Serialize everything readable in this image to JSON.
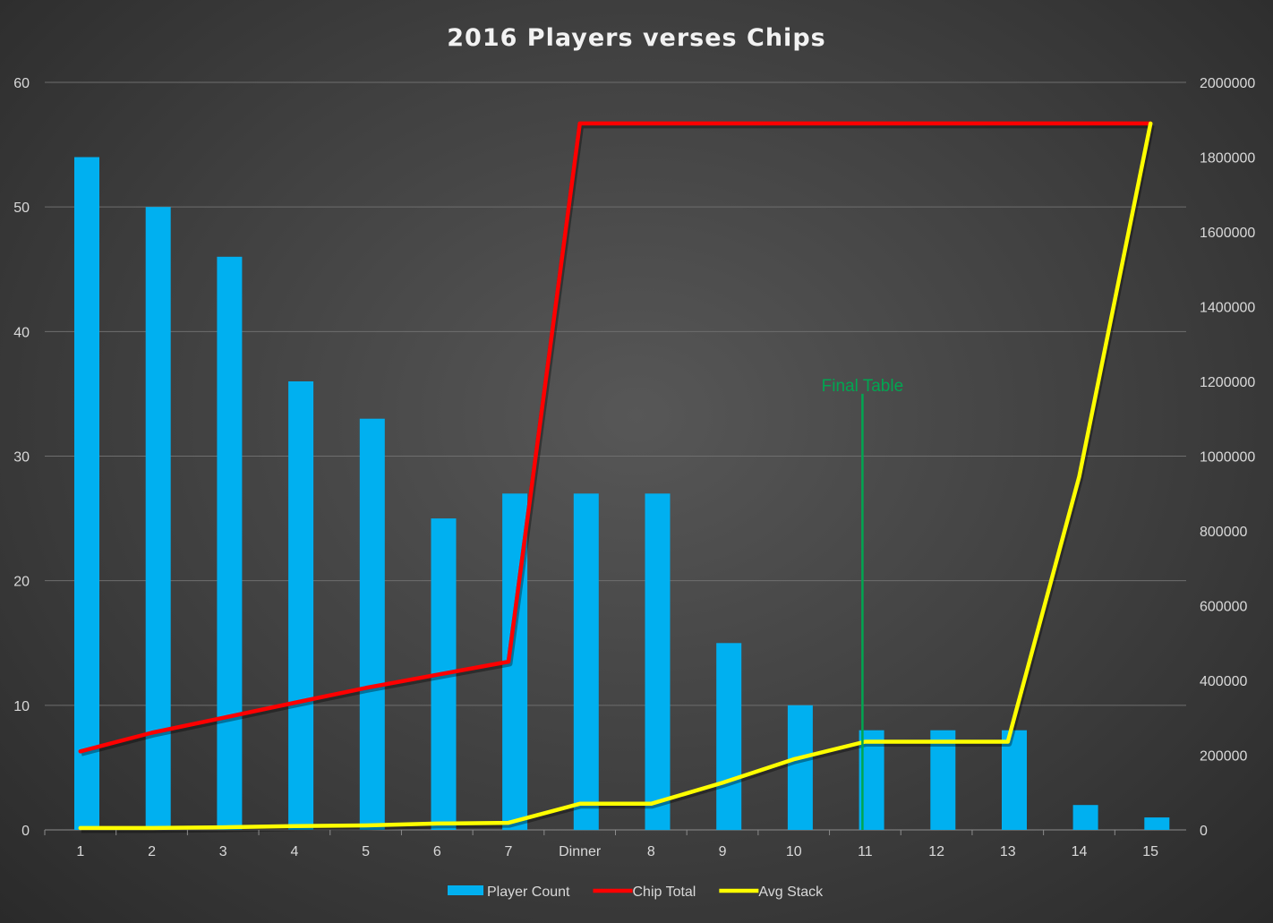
{
  "chart_data": {
    "type": "bar",
    "title": "2016 Players verses Chips",
    "categories": [
      "1",
      "2",
      "3",
      "4",
      "5",
      "6",
      "7",
      "Dinner",
      "8",
      "9",
      "10",
      "11",
      "12",
      "13",
      "14",
      "15"
    ],
    "y_left": {
      "min": 0,
      "max": 60,
      "ticks": [
        0,
        10,
        20,
        30,
        40,
        50,
        60
      ]
    },
    "y_right": {
      "min": 0,
      "max": 2000000,
      "ticks": [
        0,
        200000,
        400000,
        600000,
        800000,
        1000000,
        1200000,
        1400000,
        1600000,
        1800000,
        2000000
      ]
    },
    "grid": true,
    "legend_position": "bottom",
    "series": [
      {
        "name": "Player Count",
        "kind": "bar",
        "axis": "left",
        "color": "#00b0f0",
        "values": [
          54,
          50,
          46,
          36,
          33,
          25,
          27,
          27,
          27,
          15,
          10,
          8,
          8,
          8,
          2,
          1
        ]
      },
      {
        "name": "Chip Total",
        "kind": "line",
        "axis": "right",
        "color": "#ff0000",
        "values": [
          210000,
          260000,
          300000,
          340000,
          380000,
          415000,
          450000,
          1890000,
          1890000,
          1890000,
          1890000,
          1890000,
          1890000,
          1890000,
          1890000,
          1890000
        ]
      },
      {
        "name": "Avg Stack",
        "kind": "line",
        "axis": "right",
        "color": "#ffff00",
        "values": [
          5000,
          5000,
          7000,
          10000,
          12000,
          17000,
          19000,
          70000,
          70000,
          126000,
          189000,
          236000,
          236000,
          236000,
          945000,
          1890000
        ]
      }
    ],
    "annotations": [
      {
        "text": "Final Table",
        "category": "11",
        "top_value_left": 35,
        "color": "#00a651"
      }
    ]
  }
}
